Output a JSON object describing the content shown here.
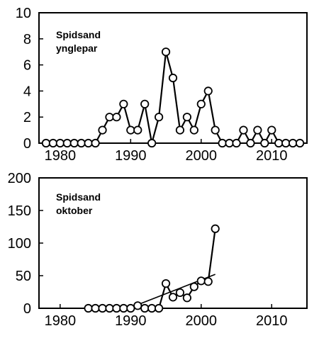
{
  "chart_data": [
    {
      "type": "line",
      "title": "Spidsand ynglepar",
      "title_lines": [
        "Spidsand",
        "ynglepar"
      ],
      "xlim": [
        1977,
        2015
      ],
      "ylim": [
        0,
        10
      ],
      "xticks": [
        1980,
        1990,
        2000,
        2010
      ],
      "yticks": [
        0,
        2,
        4,
        6,
        8,
        10
      ],
      "grid": false,
      "legend": "none",
      "series": [
        {
          "marker": "open-circle",
          "x": [
            1978,
            1979,
            1980,
            1981,
            1982,
            1983,
            1984,
            1985,
            1986,
            1987,
            1988,
            1989,
            1990,
            1991,
            1992,
            1993,
            1994,
            1995,
            1996,
            1997,
            1998,
            1999,
            2000,
            2001,
            2002,
            2003,
            2004,
            2005,
            2006,
            2007,
            2008,
            2009,
            2010,
            2011,
            2012,
            2013,
            2014
          ],
          "values": [
            0,
            0,
            0,
            0,
            0,
            0,
            0,
            0,
            1,
            2,
            2,
            3,
            1,
            1,
            3,
            0,
            2,
            7,
            5,
            1,
            2,
            1,
            3,
            4,
            1,
            0,
            0,
            0,
            1,
            0,
            1,
            0,
            1,
            0,
            0,
            0,
            0
          ],
          "line_segments": [
            [
              1978,
              1985
            ],
            [
              1985,
              2003
            ],
            [
              2005,
              2007
            ],
            [
              2007,
              2009
            ],
            [
              2009,
              2011
            ]
          ]
        }
      ]
    },
    {
      "type": "line",
      "title": "Spidsand oktober",
      "title_lines": [
        "Spidsand",
        "oktober"
      ],
      "xlim": [
        1977,
        2015
      ],
      "ylim": [
        0,
        200
      ],
      "xticks": [
        1980,
        1990,
        2000,
        2010
      ],
      "yticks": [
        0,
        50,
        100,
        150,
        200
      ],
      "grid": false,
      "legend": "none",
      "series": [
        {
          "marker": "open-circle",
          "x": [
            1984,
            1985,
            1986,
            1987,
            1988,
            1989,
            1990,
            1991,
            1992,
            1993,
            1994,
            1995,
            1996,
            1997,
            1998,
            1999,
            2000,
            2001,
            2002
          ],
          "values": [
            0,
            0,
            0,
            0,
            0,
            0,
            0,
            4,
            0,
            0,
            0,
            38,
            17,
            24,
            16,
            33,
            42,
            41,
            122
          ]
        },
        {
          "kind": "trend",
          "x": [
            1989,
            2002
          ],
          "values": [
            -3,
            52
          ]
        }
      ]
    }
  ]
}
